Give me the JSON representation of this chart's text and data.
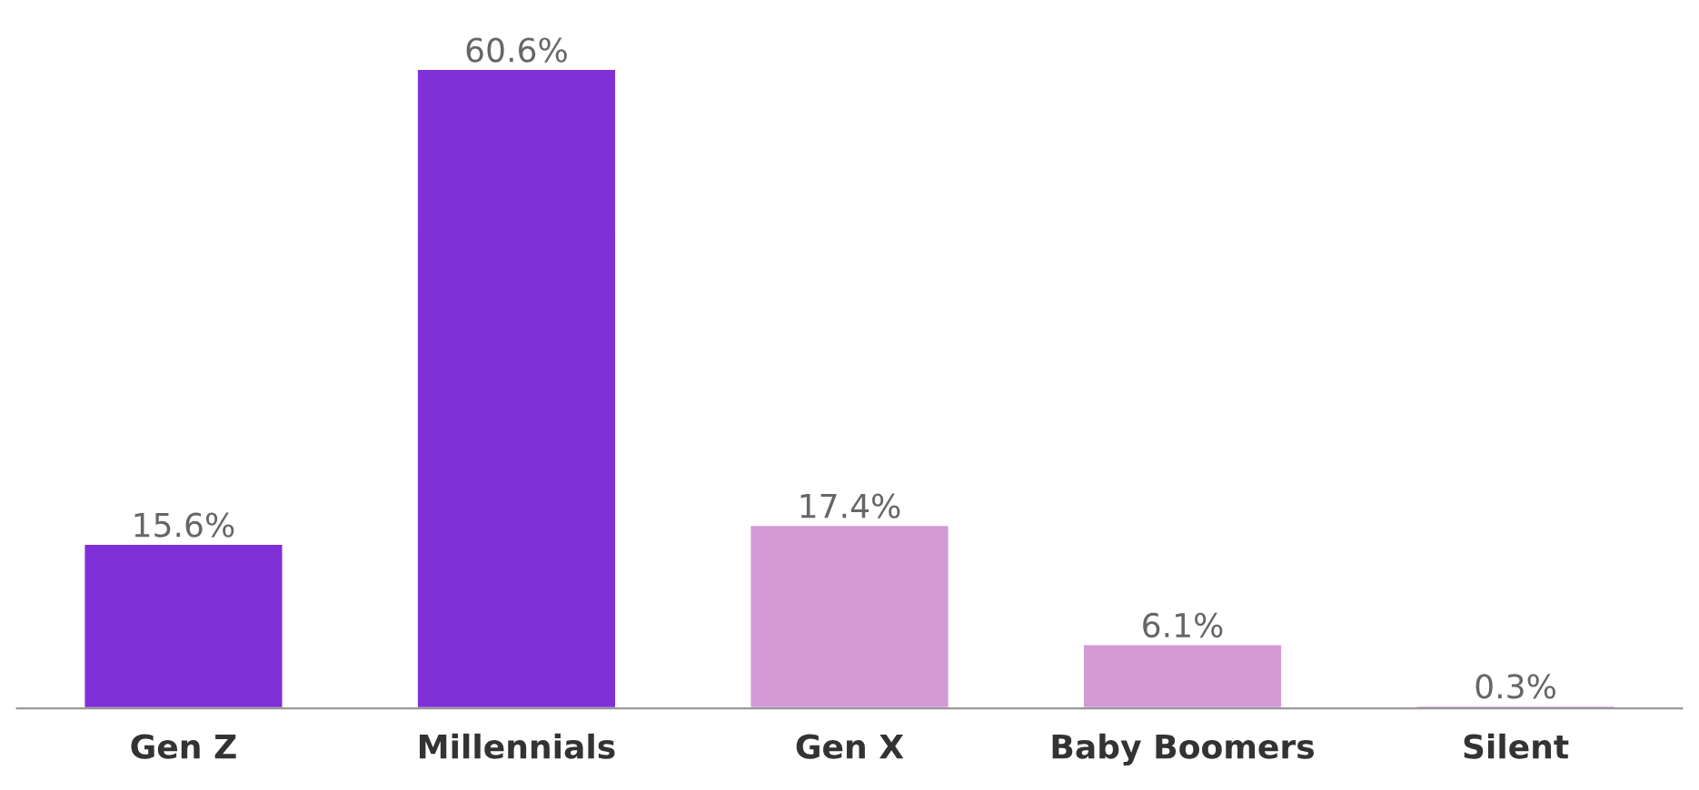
{
  "chart_data": {
    "type": "bar",
    "categories": [
      "Gen Z",
      "Millennials",
      "Gen X",
      "Baby Boomers",
      "Silent"
    ],
    "values": [
      15.6,
      60.6,
      17.4,
      6.1,
      0.3
    ],
    "colors": [
      "#7f30d6",
      "#7f30d6",
      "#d39ad6",
      "#d39ad6",
      "#d39ad6"
    ],
    "value_labels": [
      "15.6%",
      "60.6%",
      "17.4%",
      "6.1%",
      "0.3%"
    ],
    "grid": false,
    "legend": false
  }
}
